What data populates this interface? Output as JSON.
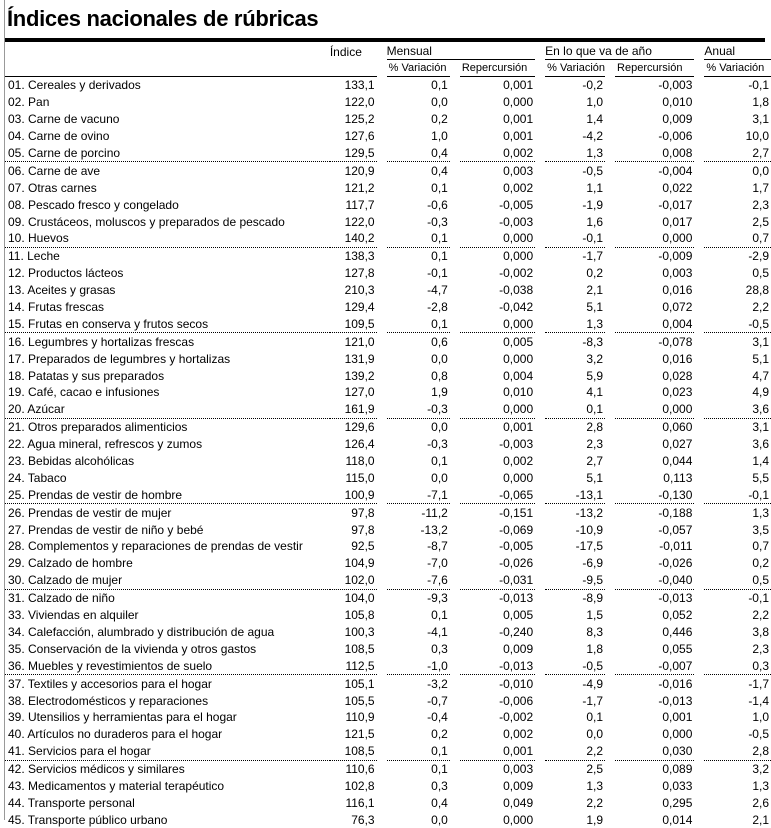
{
  "title": "Índices nacionales de rúbricas",
  "headers": {
    "indice": "Índice",
    "mensual": "Mensual",
    "en_lo_que_va": "En lo que va de año",
    "anual": "Anual",
    "variacion": "% Variación",
    "repercusion": "Repercursión"
  },
  "rows": [
    [
      "01. Cereales y derivados",
      "133,1",
      "0,1",
      "0,001",
      "-0,2",
      "-0,003",
      "-0,1"
    ],
    [
      "02. Pan",
      "122,0",
      "0,0",
      "0,000",
      "1,0",
      "0,010",
      "1,8"
    ],
    [
      "03. Carne de vacuno",
      "125,2",
      "0,2",
      "0,001",
      "1,4",
      "0,009",
      "3,1"
    ],
    [
      "04. Carne de ovino",
      "127,6",
      "1,0",
      "0,001",
      "-4,2",
      "-0,006",
      "10,0"
    ],
    [
      "05. Carne de porcino",
      "129,5",
      "0,4",
      "0,002",
      "1,3",
      "0,008",
      "2,7"
    ],
    [
      "06. Carne de ave",
      "120,9",
      "0,4",
      "0,003",
      "-0,5",
      "-0,004",
      "0,0"
    ],
    [
      "07. Otras carnes",
      "121,2",
      "0,1",
      "0,002",
      "1,1",
      "0,022",
      "1,7"
    ],
    [
      "08. Pescado fresco y congelado",
      "117,7",
      "-0,6",
      "-0,005",
      "-1,9",
      "-0,017",
      "2,3"
    ],
    [
      "09. Crustáceos, moluscos y preparados de pescado",
      "122,0",
      "-0,3",
      "-0,003",
      "1,6",
      "0,017",
      "2,5"
    ],
    [
      "10. Huevos",
      "140,2",
      "0,1",
      "0,000",
      "-0,1",
      "0,000",
      "0,7"
    ],
    [
      "11. Leche",
      "138,3",
      "0,1",
      "0,000",
      "-1,7",
      "-0,009",
      "-2,9"
    ],
    [
      "12. Productos lácteos",
      "127,8",
      "-0,1",
      "-0,002",
      "0,2",
      "0,003",
      "0,5"
    ],
    [
      "13. Aceites y grasas",
      "210,3",
      "-4,7",
      "-0,038",
      "2,1",
      "0,016",
      "28,8"
    ],
    [
      "14. Frutas frescas",
      "129,4",
      "-2,8",
      "-0,042",
      "5,1",
      "0,072",
      "2,2"
    ],
    [
      "15. Frutas en conserva y frutos secos",
      "109,5",
      "0,1",
      "0,000",
      "1,3",
      "0,004",
      "-0,5"
    ],
    [
      "16. Legumbres y hortalizas frescas",
      "121,0",
      "0,6",
      "0,005",
      "-8,3",
      "-0,078",
      "3,1"
    ],
    [
      "17. Preparados de legumbres y hortalizas",
      "131,9",
      "0,0",
      "0,000",
      "3,2",
      "0,016",
      "5,1"
    ],
    [
      "18. Patatas y sus preparados",
      "139,2",
      "0,8",
      "0,004",
      "5,9",
      "0,028",
      "4,7"
    ],
    [
      "19. Café, cacao e infusiones",
      "127,0",
      "1,9",
      "0,010",
      "4,1",
      "0,023",
      "4,9"
    ],
    [
      "20. Azúcar",
      "161,9",
      "-0,3",
      "0,000",
      "0,1",
      "0,000",
      "3,6"
    ],
    [
      "21. Otros preparados alimenticios",
      "129,6",
      "0,0",
      "0,001",
      "2,8",
      "0,060",
      "3,1"
    ],
    [
      "22. Agua mineral, refrescos y zumos",
      "126,4",
      "-0,3",
      "-0,003",
      "2,3",
      "0,027",
      "3,6"
    ],
    [
      "23. Bebidas alcohólicas",
      "118,0",
      "0,1",
      "0,002",
      "2,7",
      "0,044",
      "1,4"
    ],
    [
      "24. Tabaco",
      "115,0",
      "0,0",
      "0,000",
      "5,1",
      "0,113",
      "5,5"
    ],
    [
      "25. Prendas de vestir de hombre",
      "100,9",
      "-7,1",
      "-0,065",
      "-13,1",
      "-0,130",
      "-0,1"
    ],
    [
      "26. Prendas de vestir de mujer",
      "97,8",
      "-11,2",
      "-0,151",
      "-13,2",
      "-0,188",
      "1,3"
    ],
    [
      "27. Prendas de vestir de niño y bebé",
      "97,8",
      "-13,2",
      "-0,069",
      "-10,9",
      "-0,057",
      "3,5"
    ],
    [
      "28. Complementos y reparaciones de prendas de vestir",
      "92,5",
      "-8,7",
      "-0,005",
      "-17,5",
      "-0,011",
      "0,7"
    ],
    [
      "29. Calzado de hombre",
      "104,9",
      "-7,0",
      "-0,026",
      "-6,9",
      "-0,026",
      "0,2"
    ],
    [
      "30. Calzado de mujer",
      "102,0",
      "-7,6",
      "-0,031",
      "-9,5",
      "-0,040",
      "0,5"
    ],
    [
      "31. Calzado de niño",
      "104,0",
      "-9,3",
      "-0,013",
      "-8,9",
      "-0,013",
      "-0,1"
    ],
    [
      "33. Viviendas en alquiler",
      "105,8",
      "0,1",
      "0,005",
      "1,5",
      "0,052",
      "2,2"
    ],
    [
      "34. Calefacción, alumbrado y distribución de agua",
      "100,3",
      "-4,1",
      "-0,240",
      "8,3",
      "0,446",
      "3,8"
    ],
    [
      "35. Conservación de la vivienda y otros gastos",
      "108,5",
      "0,3",
      "0,009",
      "1,8",
      "0,055",
      "2,3"
    ],
    [
      "36. Muebles y revestimientos de suelo",
      "112,5",
      "-1,0",
      "-0,013",
      "-0,5",
      "-0,007",
      "0,3"
    ],
    [
      "37. Textiles y accesorios para el hogar",
      "105,1",
      "-3,2",
      "-0,010",
      "-4,9",
      "-0,016",
      "-1,7"
    ],
    [
      "38. Electrodomésticos y reparaciones",
      "105,5",
      "-0,7",
      "-0,006",
      "-1,7",
      "-0,013",
      "-1,4"
    ],
    [
      "39. Utensilios y herramientas para el hogar",
      "110,9",
      "-0,4",
      "-0,002",
      "0,1",
      "0,001",
      "1,0"
    ],
    [
      "40. Artículos no duraderos para el hogar",
      "121,5",
      "0,2",
      "0,002",
      "0,0",
      "0,000",
      "-0,5"
    ],
    [
      "41. Servicios para el hogar",
      "108,5",
      "0,1",
      "0,001",
      "2,2",
      "0,030",
      "2,8"
    ],
    [
      "42. Servicios médicos y similares",
      "110,6",
      "0,1",
      "0,003",
      "2,5",
      "0,089",
      "3,2"
    ],
    [
      "43. Medicamentos y material terapéutico",
      "102,8",
      "0,3",
      "0,009",
      "1,3",
      "0,033",
      "1,3"
    ],
    [
      "44. Transporte personal",
      "116,1",
      "0,4",
      "0,049",
      "2,2",
      "0,295",
      "2,6"
    ],
    [
      "45. Transporte público urbano",
      "76,3",
      "0,0",
      "0,000",
      "1,9",
      "0,014",
      "2,1"
    ]
  ]
}
